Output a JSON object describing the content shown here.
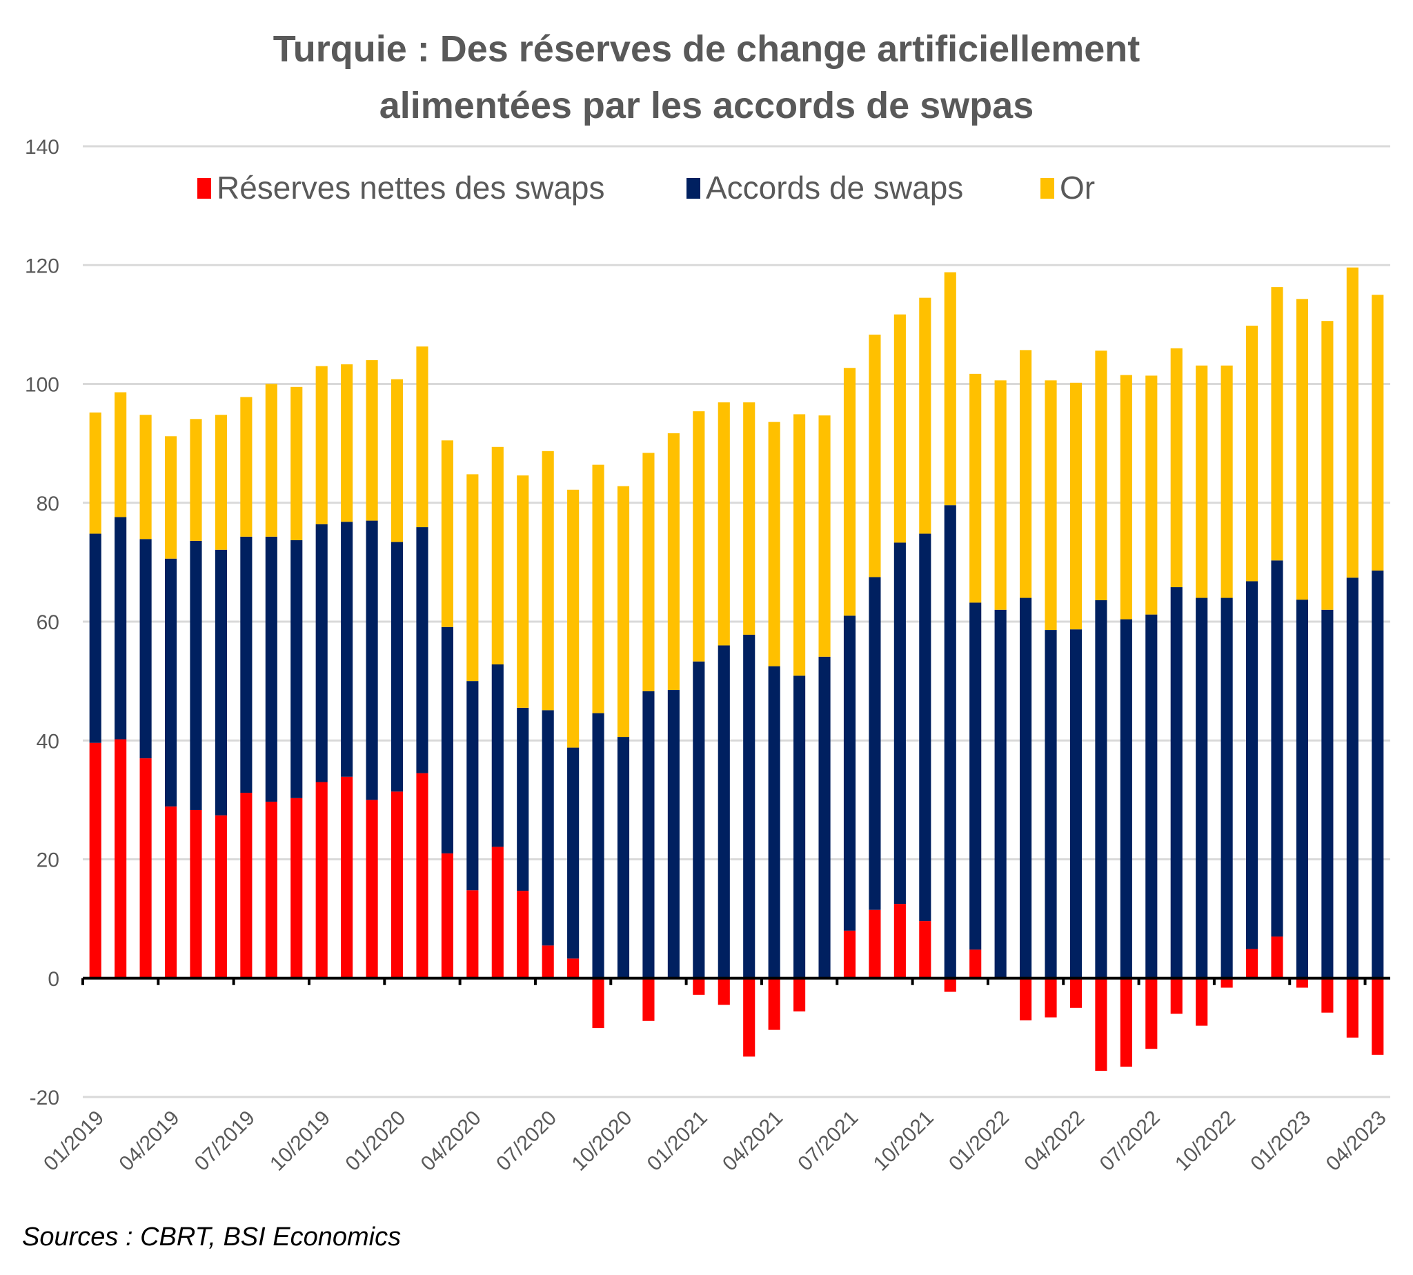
{
  "chart_data": {
    "type": "bar",
    "stacked": true,
    "title_lines": [
      "Turquie : Des réserves de change artificiellement",
      "alimentées par les accords de swpas"
    ],
    "xlabel": "",
    "ylabel": "",
    "ylim": [
      -20,
      140
    ],
    "yticks": [
      -20,
      0,
      20,
      40,
      60,
      80,
      100,
      120,
      140
    ],
    "grid": true,
    "legend_position": "top",
    "source": "Sources : CBRT, BSI Economics",
    "x_tick_labels": [
      "01/2019",
      "04/2019",
      "07/2019",
      "10/2019",
      "01/2020",
      "04/2020",
      "07/2020",
      "10/2020",
      "01/2021",
      "04/2021",
      "07/2021",
      "10/2021",
      "01/2022",
      "04/2022",
      "07/2022",
      "10/2022",
      "01/2023",
      "04/2023"
    ],
    "categories": [
      "01/2019",
      "02/2019",
      "03/2019",
      "04/2019",
      "05/2019",
      "06/2019",
      "07/2019",
      "08/2019",
      "09/2019",
      "10/2019",
      "11/2019",
      "12/2019",
      "01/2020",
      "02/2020",
      "03/2020",
      "04/2020",
      "05/2020",
      "06/2020",
      "07/2020",
      "08/2020",
      "09/2020",
      "10/2020",
      "11/2020",
      "12/2020",
      "01/2021",
      "02/2021",
      "03/2021",
      "04/2021",
      "05/2021",
      "06/2021",
      "07/2021",
      "08/2021",
      "09/2021",
      "10/2021",
      "11/2021",
      "12/2021",
      "01/2022",
      "02/2022",
      "03/2022",
      "04/2022",
      "05/2022",
      "06/2022",
      "07/2022",
      "08/2022",
      "09/2022",
      "10/2022",
      "11/2022",
      "12/2022",
      "01/2023",
      "02/2023",
      "03/2023",
      "04/2023"
    ],
    "series": [
      {
        "name": "Réserves nettes des swaps",
        "color": "#ff0000",
        "values": [
          39.6,
          40.2,
          37.0,
          28.9,
          28.3,
          27.4,
          31.2,
          29.7,
          30.3,
          33.0,
          33.9,
          30.0,
          31.4,
          34.5,
          21.0,
          14.8,
          22.1,
          14.7,
          5.5,
          3.3,
          -8.4,
          0,
          -7.2,
          0,
          -2.8,
          -4.5,
          -13.2,
          -8.7,
          -5.6,
          0,
          8.0,
          11.5,
          12.5,
          9.6,
          -2.3,
          4.8,
          0,
          -7.1,
          -6.6,
          -5.0,
          -15.6,
          -14.9,
          -11.9,
          -6.0,
          -8.0,
          -1.6,
          4.9,
          7.0,
          -1.6,
          -5.8,
          -10.0,
          -12.9
        ]
      },
      {
        "name": "Accords de swaps",
        "color": "#002060",
        "values": [
          35.2,
          37.4,
          36.9,
          41.7,
          45.3,
          44.7,
          43.1,
          44.6,
          43.4,
          43.4,
          42.9,
          47.0,
          42.0,
          41.4,
          38.1,
          35.2,
          30.7,
          30.8,
          39.6,
          35.5,
          44.6,
          40.6,
          48.3,
          48.5,
          53.3,
          56.0,
          57.8,
          52.5,
          50.9,
          54.1,
          53.0,
          56.0,
          60.8,
          65.2,
          79.6,
          58.4,
          62.0,
          64.0,
          58.6,
          58.7,
          63.6,
          60.4,
          61.2,
          65.8,
          64.0,
          64.0,
          61.9,
          63.3,
          63.7,
          62.0,
          67.4,
          68.6
        ]
      },
      {
        "name": "Or",
        "color": "#ffc000",
        "values": [
          20.4,
          21.0,
          20.9,
          20.6,
          20.5,
          22.7,
          23.5,
          25.7,
          25.8,
          26.6,
          26.5,
          27.0,
          27.4,
          30.4,
          31.4,
          34.8,
          36.6,
          39.1,
          43.6,
          43.4,
          41.8,
          42.2,
          40.1,
          43.2,
          42.1,
          40.9,
          39.1,
          41.1,
          44.0,
          40.6,
          41.7,
          40.8,
          38.4,
          39.7,
          39.2,
          38.5,
          38.6,
          41.7,
          42.0,
          41.5,
          42.0,
          41.1,
          40.2,
          40.2,
          39.1,
          39.1,
          43.0,
          46.0,
          50.6,
          48.6,
          52.2,
          46.4
        ]
      }
    ]
  }
}
